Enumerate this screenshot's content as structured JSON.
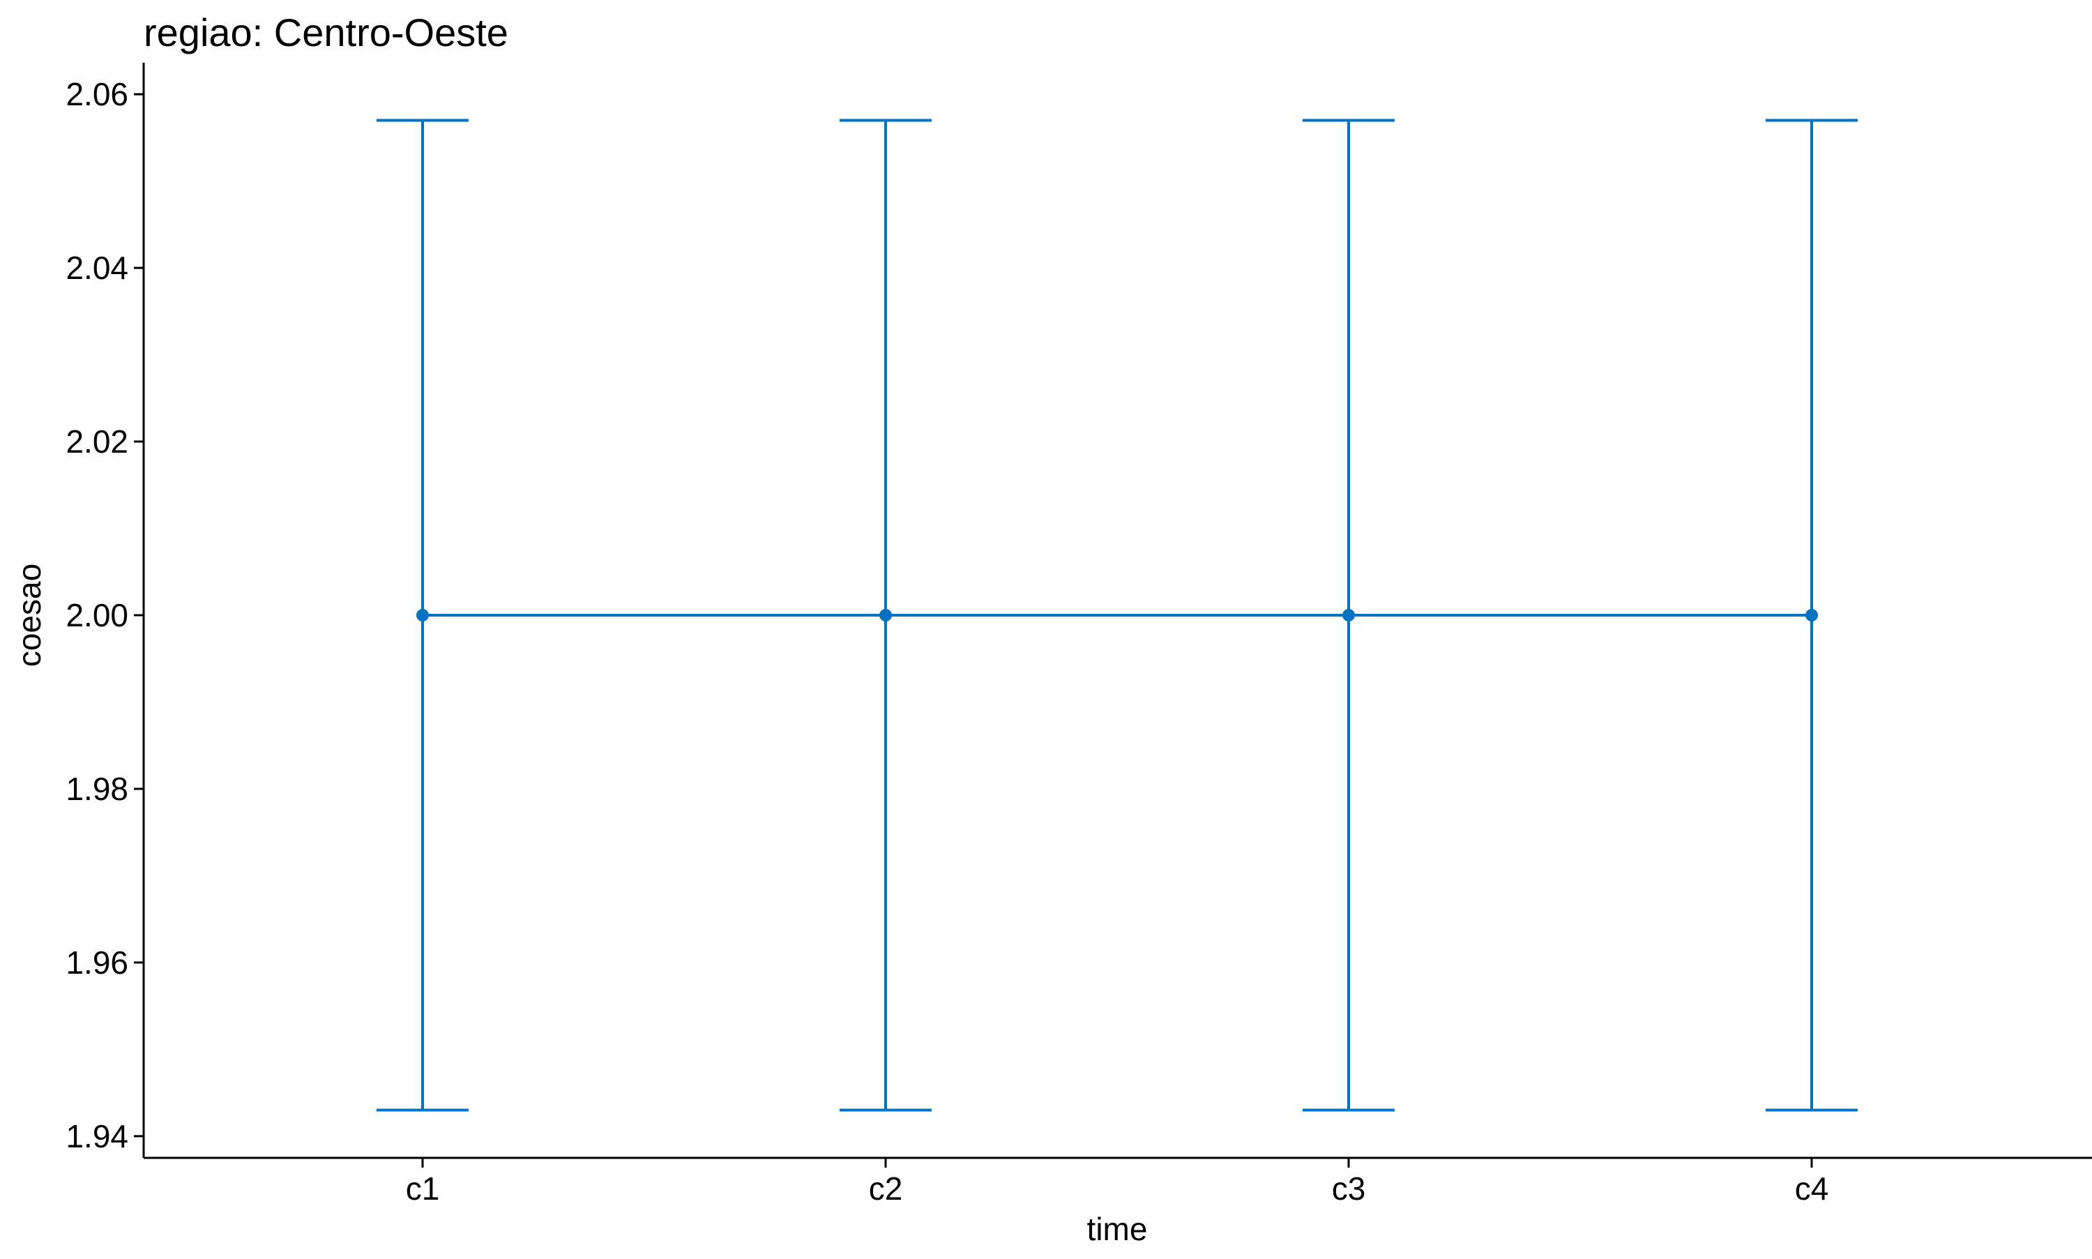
{
  "chart_data": {
    "type": "line",
    "title": "regiao: Centro-Oeste",
    "xlabel": "time",
    "ylabel": "coesao",
    "categories": [
      "c1",
      "c2",
      "c3",
      "c4"
    ],
    "series": [
      {
        "values": [
          2.0,
          2.0,
          2.0,
          2.0
        ],
        "error_low": [
          1.943,
          1.943,
          1.943,
          1.943
        ],
        "error_high": [
          2.057,
          2.057,
          2.057,
          2.057
        ]
      }
    ],
    "y_ticks": [
      1.94,
      1.96,
      1.98,
      2.0,
      2.02,
      2.04,
      2.06
    ],
    "y_tick_labels": [
      "1.94",
      "1.96",
      "1.98",
      "2.00",
      "2.02",
      "2.04",
      "2.06"
    ],
    "ylim": [
      1.9375,
      2.0625
    ],
    "grid": false,
    "legend": "none",
    "color": "#0073C2"
  }
}
